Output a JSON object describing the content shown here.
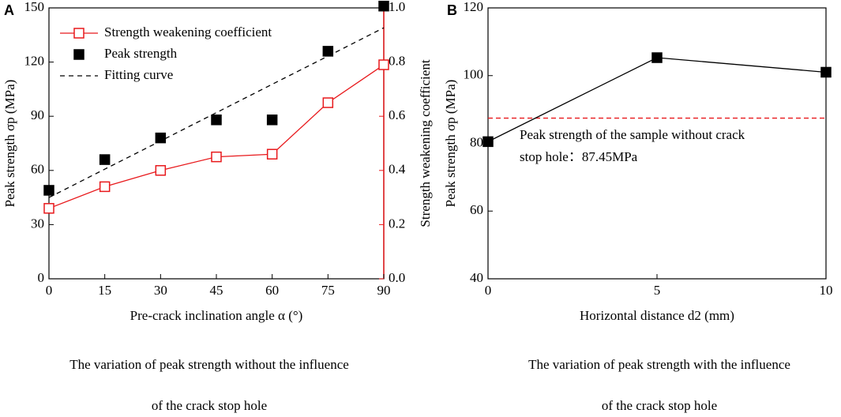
{
  "chart_data": [
    {
      "type": "line",
      "panel": "A",
      "xlabel": "Pre-crack inclination angle α (°)",
      "ylabel": "Peak strength σp (MPa)",
      "y2label": "Strength weakening coefficient",
      "x": [
        0,
        15,
        30,
        45,
        60,
        75,
        90
      ],
      "xlim": [
        0,
        90
      ],
      "xticks": [
        0,
        15,
        30,
        45,
        60,
        75,
        90
      ],
      "ylim": [
        0,
        150
      ],
      "yticks": [
        0,
        30,
        60,
        90,
        120,
        150
      ],
      "y2lim": [
        0,
        1
      ],
      "y2ticks": [
        {
          "value": 0,
          "label": "0.0"
        },
        0.2,
        0.4,
        0.6,
        0.8,
        {
          "value": 1,
          "label": "1.0"
        }
      ],
      "y2color": "#e8191c",
      "series": [
        {
          "name": "Strength weakening coefficient",
          "color": "#e8191c",
          "axis": "y2",
          "marker": "square-open",
          "line": "solid",
          "values": [
            0.26,
            0.34,
            0.4,
            0.45,
            0.46,
            0.65,
            0.79
          ]
        },
        {
          "name": "Peak strength",
          "color": "#000000",
          "marker": "square",
          "line": "none",
          "values": [
            49,
            66,
            78,
            88,
            88,
            126,
            151
          ]
        },
        {
          "name": "Fitting curve",
          "color": "#000000",
          "marker": "none",
          "line": "dashed",
          "values": [
            45,
            60.7,
            76.3,
            92,
            107.7,
            123.3,
            139
          ]
        }
      ],
      "legend": true,
      "caption": [
        "The variation of peak strength without the influence",
        "of the crack stop hole"
      ]
    },
    {
      "type": "line",
      "panel": "B",
      "xlabel": "Horizontal distance d2 (mm)",
      "ylabel": "Peak strength σp (MPa)",
      "x": [
        0,
        5,
        10
      ],
      "xlim": [
        0,
        10
      ],
      "xticks": [
        0,
        5,
        10
      ],
      "ylim": [
        40,
        120
      ],
      "yticks": [
        40,
        60,
        80,
        100,
        120
      ],
      "series": [
        {
          "name": "Peak strength",
          "color": "#000000",
          "marker": "square",
          "line": "solid",
          "values": [
            80.5,
            105.3,
            101
          ]
        }
      ],
      "legend": false,
      "reference": {
        "value": 87.45,
        "color": "#e8191c"
      },
      "annotation": [
        "Peak strength of the sample without crack",
        "stop hole：87.45MPa"
      ],
      "caption": [
        "The variation of peak strength with the influence",
        "of the crack stop hole"
      ]
    }
  ]
}
